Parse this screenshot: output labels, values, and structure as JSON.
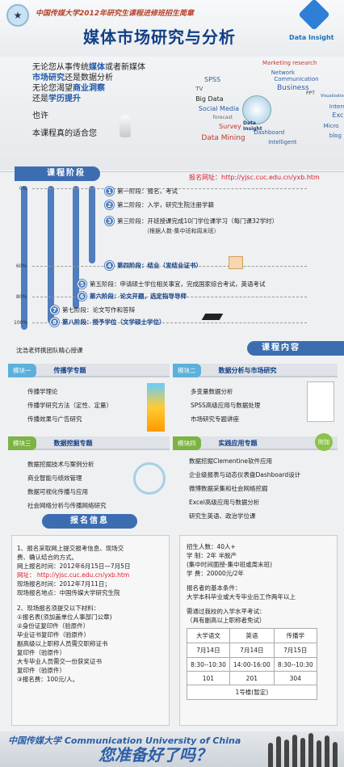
{
  "header": {
    "top_line": "中国传媒大学2012年研究生课程进修班招生简章",
    "title": "媒体市场研究与分析",
    "logo_right": "Data Insight"
  },
  "intro": {
    "l1a": "无论您从事传统",
    "l1b": "媒体",
    "l1c": "或者新媒体",
    "l2a": "市场研究",
    "l2b": "还是数据分析",
    "l3a": "无论您渴望",
    "l3b": "商业洞察",
    "l4a": "还是",
    "l4b": "学历提升",
    "l5": "也许",
    "l6": "本课程真的适合您",
    "cloud_words": [
      "Marketing research",
      "SPSS",
      "Network",
      "Communication",
      "TV",
      "Business",
      "PPT",
      "Big Data",
      "Visualization",
      "Social Media",
      "Internet",
      "forecast",
      "Excel",
      "Survey",
      "Micro",
      "Data Mining",
      "Dashboard",
      "blog",
      "Intelligent",
      "Data Insight"
    ]
  },
  "stages": {
    "header": "课程阶段",
    "website": "报名网址：http://yjsc.cuc.edu.cn/yxb.htm",
    "pct": [
      "0%",
      "60%",
      "80%",
      "100%"
    ],
    "items": [
      {
        "n": "1",
        "text": "第一阶段：报名，考试"
      },
      {
        "n": "2",
        "text": "第二阶段：入学，研究生院注册学籍"
      },
      {
        "n": "3",
        "text": "第三阶段：开班授课完成10门学位课学习（每门课32学时）"
      },
      {
        "n": "4",
        "text": "第四阶段：结业（发结业证书）"
      },
      {
        "n": "5",
        "text": "第五阶段：申请硕士学位相关事宜，完成国家综合考试，英语考试"
      },
      {
        "n": "6",
        "text": "第六阶段：论文开题，选定指导导师"
      },
      {
        "n": "7",
        "text": "第七阶段：论文写作和答辩"
      },
      {
        "n": "8",
        "text": "第八阶段：授予学位（文学硕士学位）"
      }
    ],
    "note3": "（根据人数-集中班和周末班）",
    "teacher_note": "沈浩老师携团队精心授课",
    "content_header": "课程内容"
  },
  "modules": [
    {
      "tag": "模块一",
      "title": "传播学专题",
      "items": [
        "传播学理论",
        "传播学研究方法（定性、定量）",
        "传播效果与广告研究"
      ]
    },
    {
      "tag": "模块二",
      "title": "数据分析与市场研究",
      "items": [
        "多变量数据分析",
        "SPSS高级应用与数据处理",
        "市场研究专题讲座"
      ]
    },
    {
      "tag": "模块三",
      "title": "数据挖掘专题",
      "items": [
        "数据挖掘技术与案例分析",
        "商业智能与绩效管理",
        "数据可视化传播与应用",
        "社会网络分析与传播网络研究"
      ]
    },
    {
      "tag": "模块四",
      "title": "实践应用专题",
      "items": [
        "数据挖掘Clementine软件应用",
        "企业级报表与动态仪表盘Dashboard设计",
        "微博数据采集和社会网络挖掘",
        "Excel高级应用与数据分析",
        "研究生英语、政治学位课"
      ]
    }
  ],
  "modules_badge": "附加",
  "info": {
    "header": "报名信息",
    "left": [
      "1、报名采取网上提交报考信息、现场交",
      "费、确认结合的方式。",
      "网上报名时间：2012年6月15日—7月5日",
      "网址：  http://yjsc.cuc.edu.cn/yxb.htm",
      "现场报名时间：2012年7月11日；",
      "现场报名地点：中国传媒大学研究生院",
      "",
      "2、现场报名须提交以下材料：",
      "①报名表(须加盖单位人事部门公章)",
      "②身份证复印件（验原件）",
      "  毕业证书复印件（验原件）",
      "  副高级以上职称人员需交职称证书",
      "  复印件（验原件）",
      "  大专毕业人员需交一份获奖证书",
      "  复印件（验原件）",
      "③报名费：100元/人。"
    ],
    "right": [
      "招生人数：40人+",
      "学    制：2年 半脱产",
      "     (集中时间面授-集中班或周末班)",
      "学    费：20000元/2年",
      "",
      "报名者的基本条件：",
      "大学本科毕业或大专毕业后工作两年以上",
      "",
      "需通过我校的入学水平考试：",
      "  （具有副高以上职称者免试）"
    ],
    "table": {
      "head": [
        "大学语文",
        "英语",
        "传播学"
      ],
      "date": [
        "7月14日",
        "7月14日",
        "7月15日"
      ],
      "time": [
        "8:30--10:30",
        "14:00-16:00",
        "8:30--10:30"
      ],
      "room": [
        "101",
        "201",
        "304"
      ],
      "building": "1号楼(暂定)"
    }
  },
  "footer": {
    "school": "中国传媒大学 Communication University of China",
    "slogan": "您准备好了吗？"
  }
}
